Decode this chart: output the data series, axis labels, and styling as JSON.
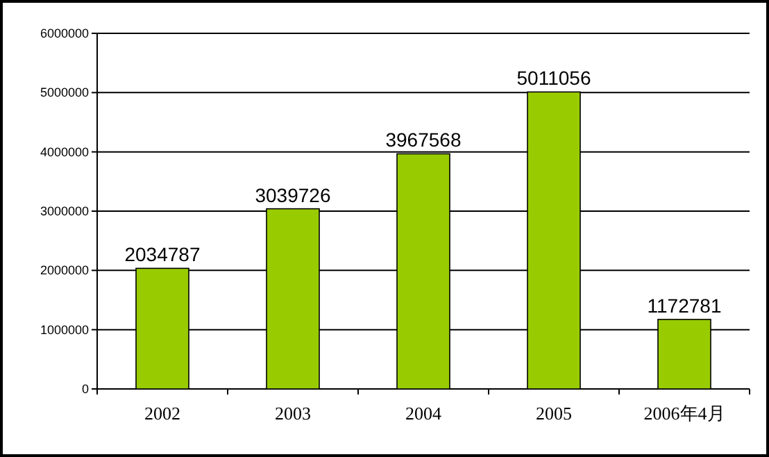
{
  "chart_data": {
    "type": "bar",
    "categories": [
      "2002",
      "2003",
      "2004",
      "2005",
      "2006年4月"
    ],
    "values": [
      2034787,
      3039726,
      3967568,
      5011056,
      1172781
    ],
    "color": "#99cc00",
    "ylim": [
      0,
      6000000
    ],
    "yticks": [
      0,
      1000000,
      2000000,
      3000000,
      4000000,
      5000000,
      6000000
    ],
    "grid": "y",
    "data_labels": true
  }
}
